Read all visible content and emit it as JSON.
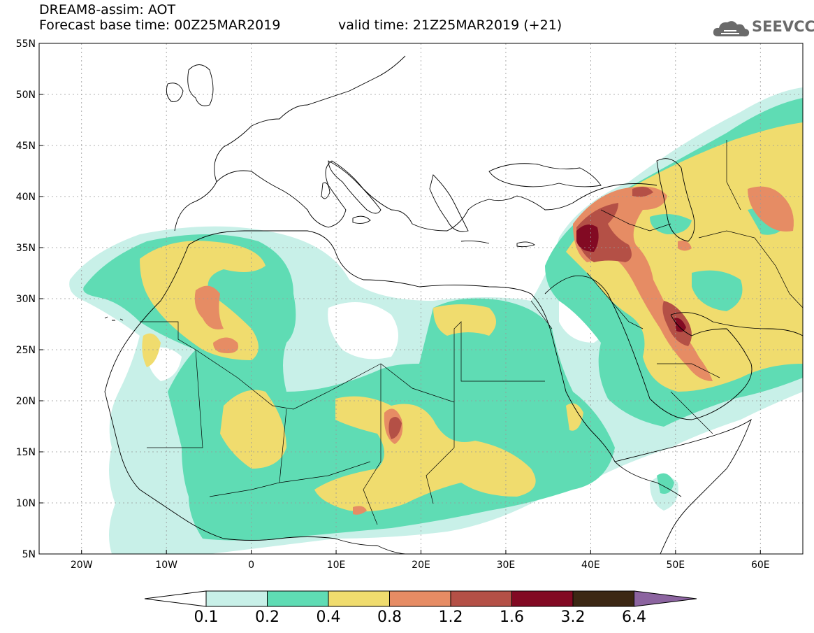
{
  "header": {
    "line1": "DREAM8-assim: AOT",
    "line2": "Forecast base time: 00Z25MAR2019",
    "line3": "valid time: 21Z25MAR2019 (+21)"
  },
  "logo": {
    "text": "SEEVCCC",
    "icon": "cloud-icon"
  },
  "map": {
    "lon_range": [
      -25,
      65
    ],
    "lat_range": [
      5,
      55
    ],
    "lat_ticks": [
      "55N",
      "50N",
      "45N",
      "40N",
      "35N",
      "30N",
      "25N",
      "20N",
      "15N",
      "10N",
      "5N"
    ],
    "lon_ticks": [
      "20W",
      "10W",
      "0",
      "10E",
      "20E",
      "30E",
      "40E",
      "50E",
      "60E"
    ]
  },
  "colorbar": {
    "labels": [
      "0.1",
      "0.2",
      "0.4",
      "0.8",
      "1.2",
      "1.6",
      "3.2",
      "6.4"
    ],
    "colors": [
      "#c8f0e8",
      "#5fdcb4",
      "#f0dc6e",
      "#e68c64",
      "#b45046",
      "#820a23",
      "#3c2814"
    ],
    "over_color": "#8c64a0",
    "under_color": "#ffffff"
  }
}
